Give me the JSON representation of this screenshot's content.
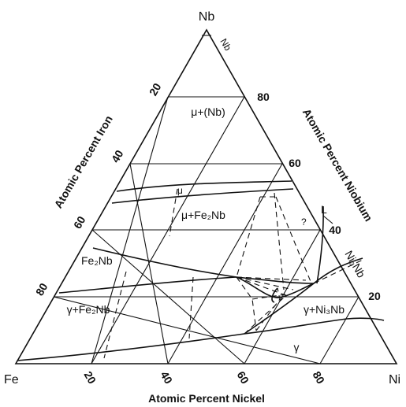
{
  "corners": {
    "top": "Nb",
    "left": "Fe",
    "right": "Ni"
  },
  "axis_titles": {
    "left": "Atomic Percent Iron",
    "right": "Atomic Percent Niobium",
    "bottom": "Atomic Percent Nickel"
  },
  "ticks": {
    "left": [
      "20",
      "40",
      "60",
      "80"
    ],
    "right": [
      "80",
      "60",
      "40",
      "20"
    ],
    "bottom": [
      "20",
      "40",
      "60",
      "80"
    ]
  },
  "phase_labels": {
    "nb_corner": "Nb",
    "mu_nb": "μ+(Nb)",
    "mu": "μ",
    "mu_fe2nb": "μ+Fe₂Nb",
    "question": "?",
    "liquid": "L",
    "ni3nb": "Ni₃Nb",
    "fe2nb": "Fe₂Nb",
    "gamma_fe2nb": "γ+Fe₂Nb",
    "gamma_ni3nb": "γ+Ni₃Nb",
    "gamma": "γ"
  }
}
